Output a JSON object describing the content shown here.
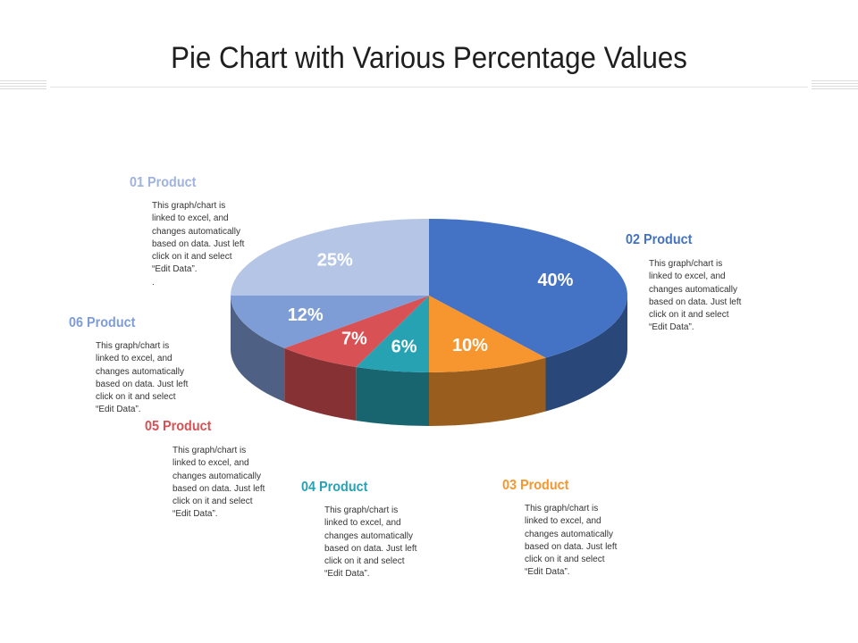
{
  "title": "Pie Chart with Various Percentage Values",
  "colors": {
    "title": "#1f1f1f",
    "rule": "#e3e3e3"
  },
  "chart_data": {
    "type": "pie",
    "title": "Pie Chart with Various Percentage Values",
    "slices": [
      {
        "name": "02 Product",
        "value": 40,
        "label": "40%",
        "color": "#4472c4",
        "description": "This graph/chart is linked to excel, and changes automatically based on data. Just left click on it and select “Edit Data”."
      },
      {
        "name": "03 Product",
        "value": 10,
        "label": "10%",
        "color": "#f7962f",
        "description": "This graph/chart is linked to excel, and changes automatically based on data. Just left click on it and select “Edit Data”."
      },
      {
        "name": "04 Product",
        "value": 6,
        "label": "6%",
        "color": "#27a2b3",
        "description": "This graph/chart is linked to excel, and changes automatically based on data. Just left click on it and select “Edit Data”."
      },
      {
        "name": "05 Product",
        "value": 7,
        "label": "7%",
        "color": "#d85154",
        "description": "This graph/chart is linked to excel, and changes automatically based on data. Just left click on it and select “Edit Data”."
      },
      {
        "name": "06  Product",
        "value": 12,
        "label": "12%",
        "color": "#7e9dd6",
        "description": "This graph/chart is linked to excel, and changes automatically based on data. Just left click on it and select “Edit Data”."
      },
      {
        "name": "01 Product",
        "value": 25,
        "label": "25%",
        "color": "#b4c5e6",
        "description": "This graph/chart is linked to excel, and changes automatically based on data. Just left click on it and select “Edit Data”.\n."
      }
    ]
  }
}
